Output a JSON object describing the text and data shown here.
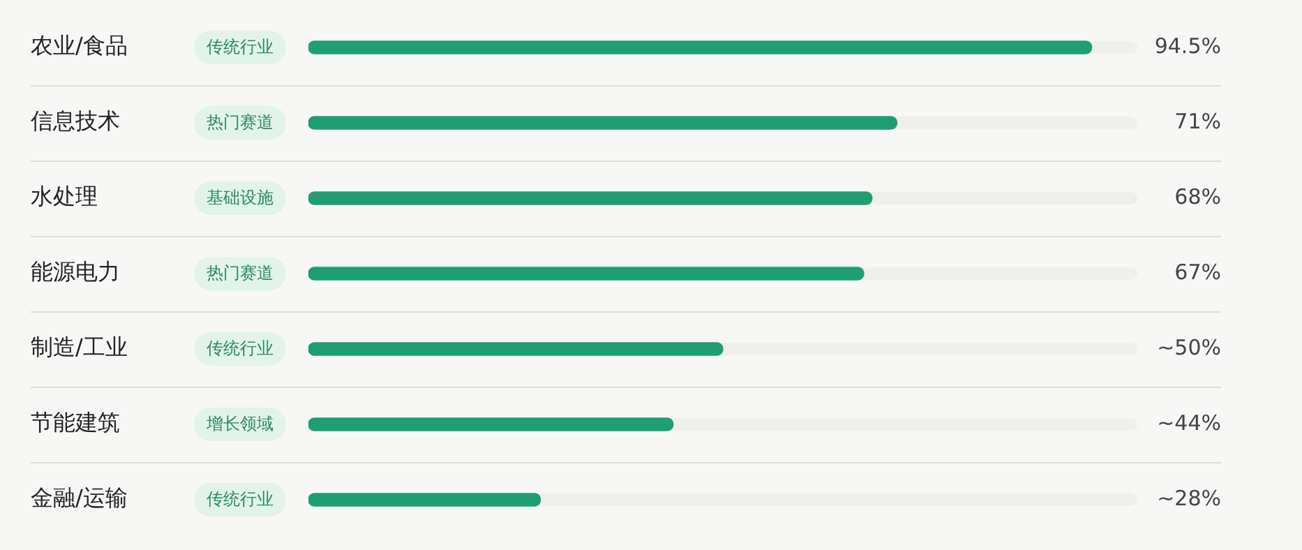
{
  "chart_data": {
    "type": "bar",
    "orientation": "horizontal",
    "categories": [
      "农业/食品",
      "信息技术",
      "水处理",
      "能源电力",
      "制造/工业",
      "节能建筑",
      "金融/运输"
    ],
    "values": [
      94.5,
      71,
      68,
      67,
      50,
      44,
      28
    ],
    "value_labels": [
      "94.5%",
      "71%",
      "68%",
      "67%",
      "~50%",
      "~44%",
      "~28%"
    ],
    "color": "#1f9e74",
    "xlim": [
      0,
      100
    ],
    "grid": "y",
    "annotations": [
      "传统行业",
      "热门赛道",
      "基础设施",
      "热门赛道",
      "传统行业",
      "增长领域",
      "传统行业"
    ]
  }
}
